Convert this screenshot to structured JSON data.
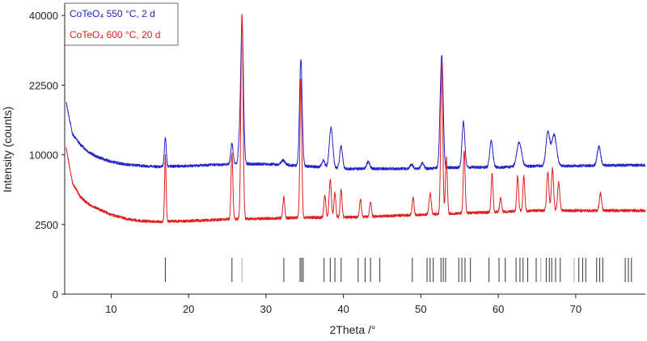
{
  "chart_data": {
    "type": "line",
    "xlabel": "2Theta /°",
    "ylabel": "Intensity (counts)",
    "xlim": [
      4,
      79
    ],
    "x_ticks": [
      10,
      20,
      30,
      40,
      50,
      60,
      70
    ],
    "y_ticks": [
      {
        "label": "0",
        "value": 0
      },
      {
        "label": "2500",
        "value": 1
      },
      {
        "label": "10000",
        "value": 2
      },
      {
        "label": "22500",
        "value": 3
      },
      {
        "label": "40000",
        "value": 4
      }
    ],
    "y_scale_note": "square-root scale",
    "legend": {
      "placement": "top-left"
    },
    "series": [
      {
        "name": "CoTeO₄ 550 °C, 2 d",
        "color": "#2424c8",
        "baseline": [
          [
            4.2,
            2.75
          ],
          [
            5,
            2.3
          ],
          [
            6,
            2.15
          ],
          [
            7,
            2.05
          ],
          [
            8,
            1.98
          ],
          [
            10,
            1.9
          ],
          [
            12,
            1.86
          ],
          [
            14,
            1.84
          ],
          [
            16,
            1.83
          ],
          [
            20,
            1.84
          ],
          [
            24,
            1.86
          ],
          [
            28,
            1.87
          ],
          [
            32,
            1.86
          ],
          [
            36,
            1.83
          ],
          [
            40,
            1.8
          ],
          [
            45,
            1.8
          ],
          [
            50,
            1.8
          ],
          [
            55,
            1.82
          ],
          [
            60,
            1.82
          ],
          [
            65,
            1.84
          ],
          [
            70,
            1.84
          ],
          [
            75,
            1.85
          ],
          [
            79,
            1.85
          ]
        ],
        "peaks": [
          [
            17.0,
            0.42,
            0.12
          ],
          [
            25.6,
            0.3,
            0.15
          ],
          [
            26.5,
            0.2,
            0.12
          ],
          [
            26.9,
            2.05,
            0.18
          ],
          [
            32.2,
            0.06,
            0.25
          ],
          [
            34.5,
            1.52,
            0.17
          ],
          [
            37.4,
            0.1,
            0.2
          ],
          [
            38.4,
            0.58,
            0.22
          ],
          [
            39.7,
            0.32,
            0.18
          ],
          [
            43.2,
            0.1,
            0.2
          ],
          [
            48.8,
            0.06,
            0.2
          ],
          [
            50.2,
            0.08,
            0.2
          ],
          [
            52.6,
            1.1,
            0.17
          ],
          [
            52.8,
            0.85,
            0.15
          ],
          [
            55.5,
            0.65,
            0.18
          ],
          [
            59.1,
            0.38,
            0.2
          ],
          [
            62.7,
            0.35,
            0.3
          ],
          [
            66.4,
            0.48,
            0.24
          ],
          [
            67.2,
            0.45,
            0.32
          ],
          [
            73.0,
            0.27,
            0.22
          ]
        ]
      },
      {
        "name": "CoTeO₄ 600 °C, 20 d",
        "color": "#e01e1e",
        "baseline": [
          [
            4.2,
            2.1
          ],
          [
            5,
            1.6
          ],
          [
            6,
            1.4
          ],
          [
            7,
            1.3
          ],
          [
            8,
            1.24
          ],
          [
            10,
            1.14
          ],
          [
            12,
            1.08
          ],
          [
            14,
            1.05
          ],
          [
            16,
            1.04
          ],
          [
            20,
            1.05
          ],
          [
            24,
            1.07
          ],
          [
            28,
            1.08
          ],
          [
            32,
            1.09
          ],
          [
            36,
            1.1
          ],
          [
            40,
            1.1
          ],
          [
            45,
            1.12
          ],
          [
            50,
            1.14
          ],
          [
            55,
            1.16
          ],
          [
            60,
            1.18
          ],
          [
            65,
            1.2
          ],
          [
            70,
            1.2
          ],
          [
            75,
            1.2
          ],
          [
            79,
            1.2
          ]
        ],
        "peaks": [
          [
            17.0,
            0.95,
            0.1
          ],
          [
            25.6,
            0.95,
            0.12
          ],
          [
            26.9,
            2.95,
            0.14
          ],
          [
            32.3,
            0.3,
            0.12
          ],
          [
            34.5,
            2.0,
            0.12
          ],
          [
            37.6,
            0.32,
            0.12
          ],
          [
            38.3,
            0.55,
            0.14
          ],
          [
            38.9,
            0.35,
            0.12
          ],
          [
            39.7,
            0.4,
            0.12
          ],
          [
            42.2,
            0.25,
            0.12
          ],
          [
            43.5,
            0.2,
            0.12
          ],
          [
            49.0,
            0.25,
            0.12
          ],
          [
            51.2,
            0.3,
            0.14
          ],
          [
            52.7,
            2.2,
            0.13
          ],
          [
            53.3,
            0.8,
            0.12
          ],
          [
            55.6,
            0.9,
            0.12
          ],
          [
            59.2,
            0.55,
            0.12
          ],
          [
            60.3,
            0.2,
            0.12
          ],
          [
            62.5,
            0.5,
            0.12
          ],
          [
            63.3,
            0.5,
            0.12
          ],
          [
            66.4,
            0.55,
            0.14
          ],
          [
            67.0,
            0.6,
            0.14
          ],
          [
            67.8,
            0.4,
            0.14
          ],
          [
            73.2,
            0.25,
            0.14
          ]
        ]
      }
    ],
    "reference_lines": {
      "color": "#444444",
      "faint_color": "#a8a8a8",
      "positions": [
        17.0,
        25.6,
        32.3,
        34.4,
        34.6,
        34.8,
        37.5,
        38.3,
        38.9,
        39.7,
        41.9,
        42.8,
        43.5,
        44.7,
        48.9,
        50.8,
        51.2,
        51.6,
        52.6,
        52.9,
        53.2,
        54.9,
        55.3,
        55.7,
        56.4,
        58.8,
        60.1,
        60.9,
        62.3,
        62.8,
        63.2,
        63.8,
        64.9,
        66.2,
        66.6,
        66.9,
        67.4,
        68.0,
        70.4,
        70.9,
        71.3,
        72.7,
        73.1,
        73.5,
        76.4,
        76.8,
        77.2
      ],
      "faint_positions": [
        26.9,
        65.5,
        69.8
      ]
    }
  }
}
